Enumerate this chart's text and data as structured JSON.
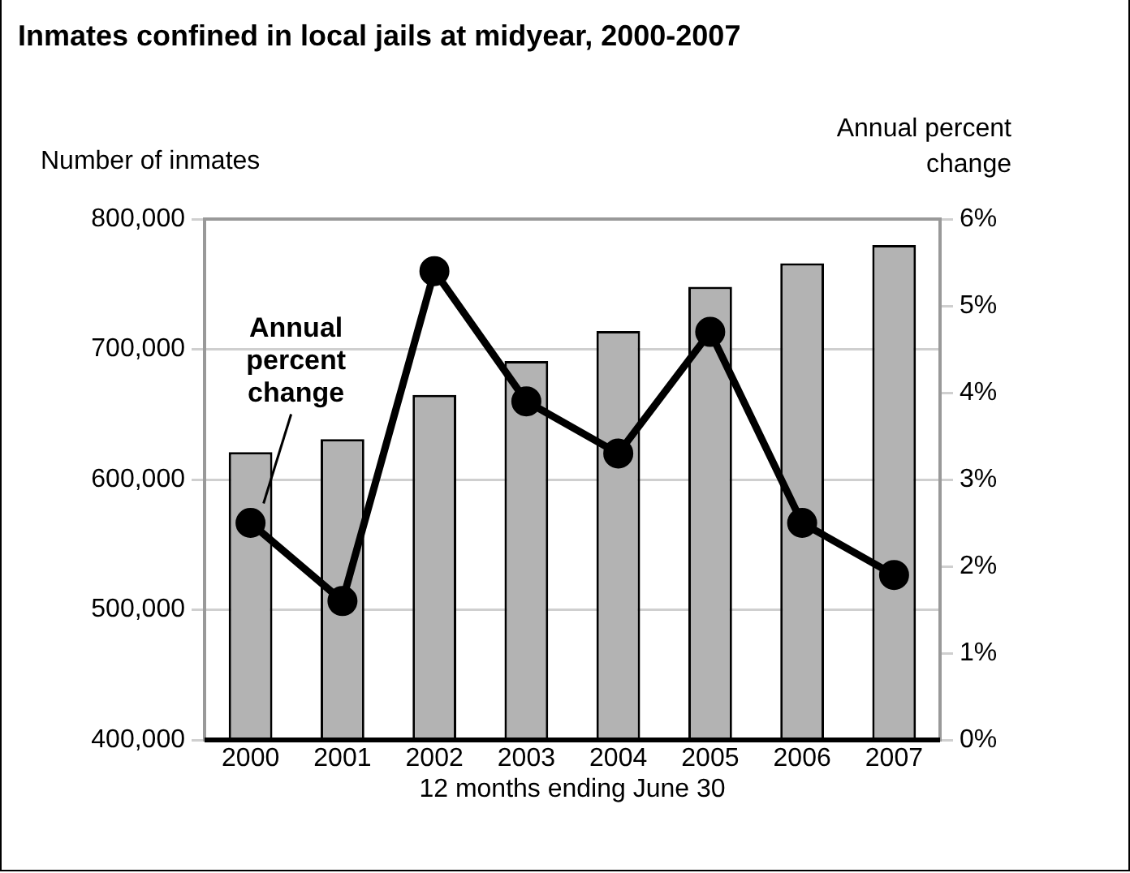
{
  "chart_data": {
    "type": "bar",
    "title": "Inmates confined in local jails at midyear, 2000-2007",
    "xlabel": "12 months ending June 30",
    "ylabel": "Number of inmates",
    "y2label": "Annual percent change",
    "categories": [
      "2000",
      "2001",
      "2002",
      "2003",
      "2004",
      "2005",
      "2006",
      "2007"
    ],
    "series": [
      {
        "color": "#b3b3b3",
        "values": [
          621000,
          631000,
          665000,
          691000,
          714000,
          748000,
          766000,
          780000
        ]
      },
      {
        "type": "line",
        "name": "Annual percent change",
        "axis": "y2",
        "color": "#000000",
        "marker": "circle",
        "values": [
          2.5,
          1.6,
          5.4,
          3.9,
          3.3,
          4.7,
          2.5,
          1.9
        ]
      }
    ],
    "ylim": [
      400000,
      800000
    ],
    "yticks": [
      {
        "value": 400000,
        "label": "400,000"
      },
      {
        "value": 500000,
        "label": "500,000"
      },
      {
        "value": 600000,
        "label": "600,000"
      },
      {
        "value": 700000,
        "label": "700,000"
      },
      {
        "value": 800000,
        "label": "800,000"
      }
    ],
    "y2lim": [
      0,
      6
    ],
    "y2ticks": [
      {
        "value": 0,
        "label": "0%"
      },
      {
        "value": 1,
        "label": "1%"
      },
      {
        "value": 2,
        "label": "2%"
      },
      {
        "value": 3,
        "label": "3%"
      },
      {
        "value": 4,
        "label": "4%"
      },
      {
        "value": 5,
        "label": "5%"
      },
      {
        "value": 6,
        "label": "6%"
      }
    ],
    "grid": "y",
    "legend": false
  }
}
